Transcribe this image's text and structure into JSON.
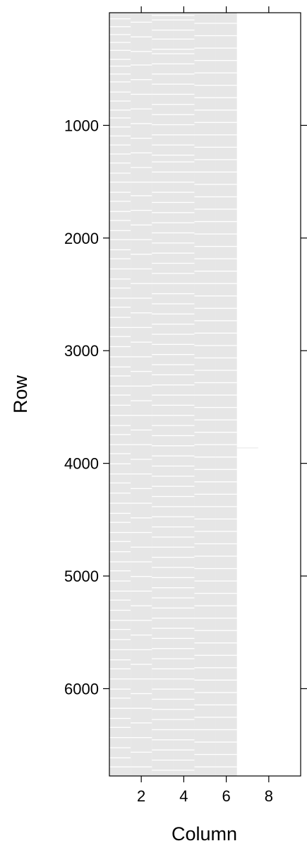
{
  "chart_data": {
    "type": "heatmap",
    "title": "",
    "xlabel": "Column",
    "ylabel": "Row",
    "xlim": [
      0.5,
      9.5
    ],
    "ylim": [
      6775,
      0
    ],
    "x_ticks": [
      2,
      4,
      6,
      8
    ],
    "y_ticks": [
      1000,
      2000,
      3000,
      4000,
      5000,
      6000
    ],
    "y_reversed": true,
    "grid": false,
    "colors": {
      "filled": "#e6e6e6",
      "missing": "#ffffff",
      "frame": "#000000"
    },
    "columns": [
      {
        "column": 1,
        "rows": [
          1,
          6775
        ],
        "gaps": [
          50,
          120,
          190,
          260,
          330,
          410,
          470,
          540,
          610,
          700,
          780,
          860,
          930,
          1010,
          1090,
          1170,
          1250,
          1330,
          1420,
          1500,
          1590,
          1670,
          1760,
          1840,
          1930,
          2010,
          2100,
          2180,
          2270,
          2360,
          2440,
          2530,
          2610,
          2700,
          2790,
          2870,
          2960,
          3050,
          3140,
          3220,
          3310,
          3390,
          3480,
          3570,
          3660,
          3740,
          3830,
          3910,
          4000,
          4090,
          4170,
          4260,
          4350,
          4440,
          4520,
          4610,
          4690,
          4780,
          4870,
          4950,
          5040,
          5130,
          5210,
          5300,
          5390,
          5470,
          5560,
          5650,
          5740,
          5820,
          5910,
          6000,
          6080,
          6170,
          6260,
          6340,
          6430,
          6520,
          6610,
          6690
        ]
      },
      {
        "column": 2,
        "rows": [
          1,
          6775
        ],
        "gaps": [
          80,
          210,
          340,
          460,
          590,
          720,
          850,
          980,
          1110,
          1240,
          1370,
          1500,
          1620,
          1750,
          1880,
          2010,
          2140,
          2270,
          2400,
          2530,
          2660,
          2790,
          2920,
          3050,
          3180,
          3310,
          3440,
          3570,
          3700,
          3830,
          3960,
          4090,
          4220,
          4350,
          4480,
          4610,
          4740,
          4870,
          5000,
          5130,
          5260,
          5390,
          5520,
          5650,
          5780,
          5910,
          6040,
          6170,
          6300,
          6430,
          6560,
          6690
        ]
      },
      {
        "column": 3,
        "rows": [
          1,
          6775
        ],
        "gaps": [
          20,
          60,
          150,
          230,
          320,
          360,
          450,
          540,
          630,
          720,
          810,
          900,
          990,
          1080,
          1170,
          1260,
          1320,
          1410,
          1500,
          1590,
          1680,
          1770,
          1860,
          1950,
          2040,
          2130,
          2220,
          2310,
          2400,
          2490,
          2580,
          2670,
          2760,
          2850,
          2940,
          3030,
          3120,
          3210,
          3300,
          3390,
          3480,
          3570,
          3660,
          3750,
          3840,
          3930,
          4020,
          4110,
          4200,
          4290,
          4380,
          4470,
          4560,
          4650,
          4740,
          4830,
          4920,
          5010,
          5100,
          5190,
          5280,
          5370,
          5460,
          5550,
          5640,
          5730,
          5820,
          5910,
          6000,
          6090,
          6180,
          6270,
          6360,
          6450,
          6540,
          6630,
          6720
        ]
      },
      {
        "column": 4,
        "rows": [
          1,
          6775
        ],
        "gaps": [
          20,
          60,
          150,
          230,
          320,
          360,
          450,
          540,
          630,
          720,
          810,
          900,
          990,
          1080,
          1170,
          1260,
          1320,
          1410,
          1500,
          1590,
          1680,
          1770,
          1860,
          1950,
          2040,
          2130,
          2220,
          2310,
          2400,
          2490,
          2580,
          2670,
          2760,
          2850,
          2940,
          3030,
          3120,
          3210,
          3300,
          3390,
          3480,
          3570,
          3660,
          3750,
          3840,
          3930,
          4020,
          4110,
          4200,
          4290,
          4380,
          4470,
          4560,
          4650,
          4740,
          4830,
          4920,
          5010,
          5100,
          5190,
          5280,
          5370,
          5460,
          5550,
          5640,
          5730,
          5820,
          5910,
          6000,
          6090,
          6180,
          6270,
          6360,
          6450,
          6540,
          6630,
          6720
        ]
      },
      {
        "column": 5,
        "rows": [
          1,
          6775
        ],
        "gaps": [
          90,
          200,
          310,
          420,
          530,
          640,
          750,
          860,
          970,
          1080,
          1190,
          1300,
          1410,
          1520,
          1630,
          1740,
          1850,
          1960,
          2070,
          2180,
          2290,
          2400,
          2510,
          2620,
          2730,
          2840,
          2950,
          3060,
          3170,
          3280,
          3390,
          3500,
          3610,
          3720,
          3830,
          3940,
          4050,
          4160,
          4270,
          4380,
          4490,
          4600,
          4710,
          4820,
          4930,
          5040,
          5150,
          5260,
          5370,
          5480,
          5590,
          5700,
          5810,
          5920,
          6030,
          6140,
          6250,
          6360,
          6470,
          6580,
          6690
        ]
      },
      {
        "column": 6,
        "rows": [
          1,
          6775
        ],
        "gaps": [
          90,
          200,
          310,
          420,
          530,
          640,
          750,
          860,
          970,
          1080,
          1190,
          1300,
          1410,
          1520,
          1630,
          1740,
          1850,
          1960,
          2070,
          2180,
          2290,
          2400,
          2510,
          2620,
          2730,
          2840,
          2950,
          3060,
          3170,
          3280,
          3390,
          3500,
          3610,
          3720,
          3830,
          3940,
          4050,
          4160,
          4270,
          4380,
          4490,
          4600,
          4710,
          4820,
          4930,
          5040,
          5150,
          5260,
          5370,
          5480,
          5590,
          5700,
          5810,
          5920,
          6030,
          6140,
          6250,
          6360,
          6470,
          6580,
          6690
        ]
      },
      {
        "column": 7,
        "rows": [
          3860,
          3862
        ],
        "gaps": []
      },
      {
        "column": 8,
        "rows": null,
        "gaps": []
      },
      {
        "column": 9,
        "rows": null,
        "gaps": []
      }
    ]
  }
}
